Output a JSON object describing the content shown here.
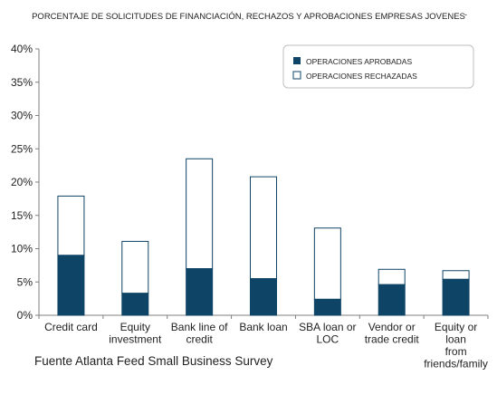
{
  "title": "PORCENTAJE DE SOLICITUDES DE FINANCIACIÓN, RECHAZOS Y APROBACIONES EMPRESAS JOVENES",
  "title_mark": "-",
  "source": "Fuente Atlanta Feed Small Business Survey",
  "colors": {
    "approved": "#0e4466",
    "rejected": "#ffffff",
    "outline": "#0e4466",
    "axis": "#7f7f7f",
    "text": "#222222"
  },
  "chart_data": {
    "type": "bar",
    "stacked": true,
    "title": "PORCENTAJE DE SOLICITUDES DE FINANCIACIÓN, RECHAZOS Y APROBACIONES EMPRESAS JOVENES",
    "xlabel": "",
    "ylabel": "",
    "ylim": [
      0,
      40
    ],
    "y_ticks": [
      "0%",
      "5%",
      "10%",
      "15%",
      "20%",
      "25%",
      "30%",
      "35%",
      "40%"
    ],
    "grid": false,
    "legend_position": "top-right",
    "categories": [
      [
        "Credit card"
      ],
      [
        "Equity",
        "investment"
      ],
      [
        "Bank line of",
        "credit"
      ],
      [
        "Bank loan"
      ],
      [
        "SBA loan or",
        "LOC"
      ],
      [
        "Vendor or",
        "trade credit"
      ],
      [
        "Equity or",
        "loan",
        "from",
        "friends/family"
      ]
    ],
    "series": [
      {
        "name": "OPERACIONES APROBADAS",
        "values": [
          9.0,
          3.3,
          7.0,
          5.5,
          2.4,
          4.6,
          5.4
        ]
      },
      {
        "name": "OPERACIONES RECHAZADAS",
        "values": [
          8.9,
          7.8,
          16.5,
          15.3,
          10.7,
          2.3,
          1.3
        ]
      }
    ]
  }
}
